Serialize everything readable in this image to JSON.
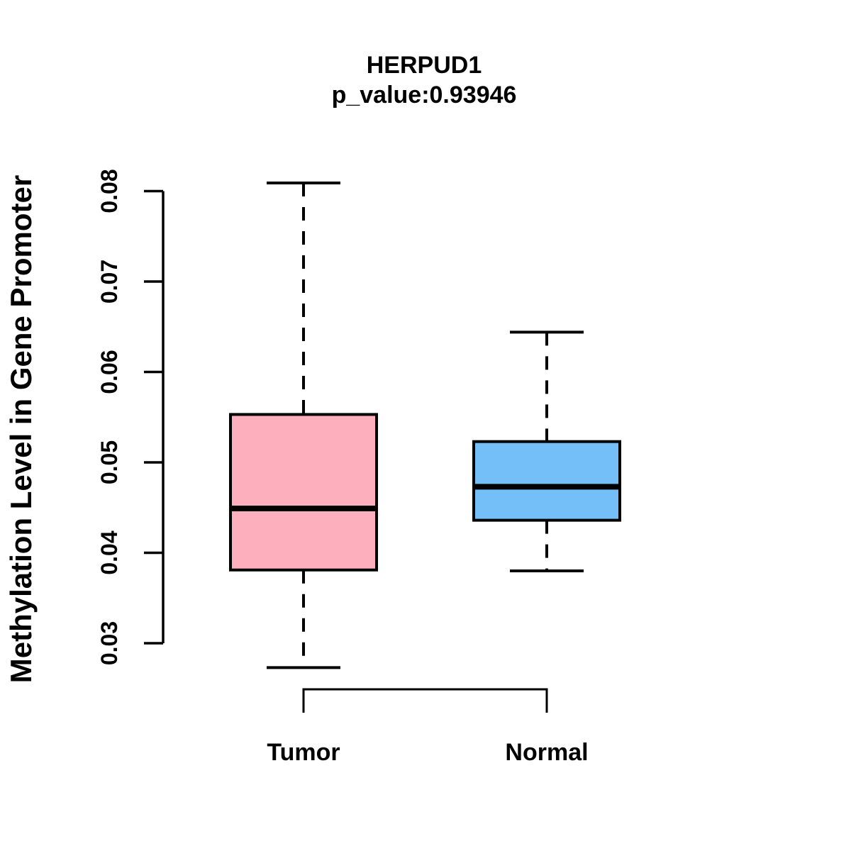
{
  "chart_data": {
    "type": "boxplot",
    "title": "HERPUD1",
    "subtitle": "p_value:0.93946",
    "ylabel": "Methylation Level in Gene Promoter",
    "xlabel": "",
    "categories": [
      "Tumor",
      "Normal"
    ],
    "series": [
      {
        "name": "Tumor",
        "lower_whisker": 0.0273,
        "q1": 0.0381,
        "median": 0.0449,
        "q3": 0.0553,
        "upper_whisker": 0.0809,
        "fill": "#FDAFBE"
      },
      {
        "name": "Normal",
        "lower_whisker": 0.038,
        "q1": 0.0436,
        "median": 0.0473,
        "q3": 0.0523,
        "upper_whisker": 0.0644,
        "fill": "#74BFF8"
      }
    ],
    "yticks": [
      0.03,
      0.04,
      0.05,
      0.06,
      0.07,
      0.08
    ],
    "ytick_labels": [
      "0.03",
      "0.04",
      "0.05",
      "0.06",
      "0.07",
      "0.08"
    ],
    "ylim": [
      0.0265,
      0.0815
    ],
    "grid": false,
    "legend": false,
    "whisker_style": "dashed",
    "box_border_color": "#000000",
    "median_color": "#000000"
  },
  "colors": {
    "background": "#FFFFFF",
    "foreground": "#000000",
    "tumor_fill": "#FDAFBE",
    "normal_fill": "#74BFF8"
  }
}
